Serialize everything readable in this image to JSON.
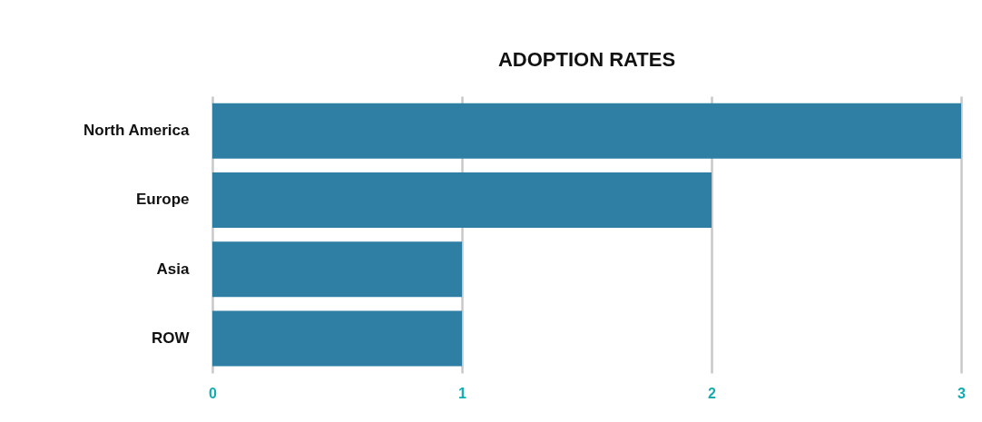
{
  "chart_data": {
    "type": "bar",
    "orientation": "horizontal",
    "title": "ADOPTION RATES",
    "categories": [
      "North America",
      "Europe",
      "Asia",
      "ROW"
    ],
    "values": [
      3,
      2,
      1,
      1
    ],
    "color": "#2e7fa3",
    "xlim": [
      0,
      3
    ],
    "xticks": [
      0,
      1,
      2,
      3
    ],
    "grid": "x"
  }
}
